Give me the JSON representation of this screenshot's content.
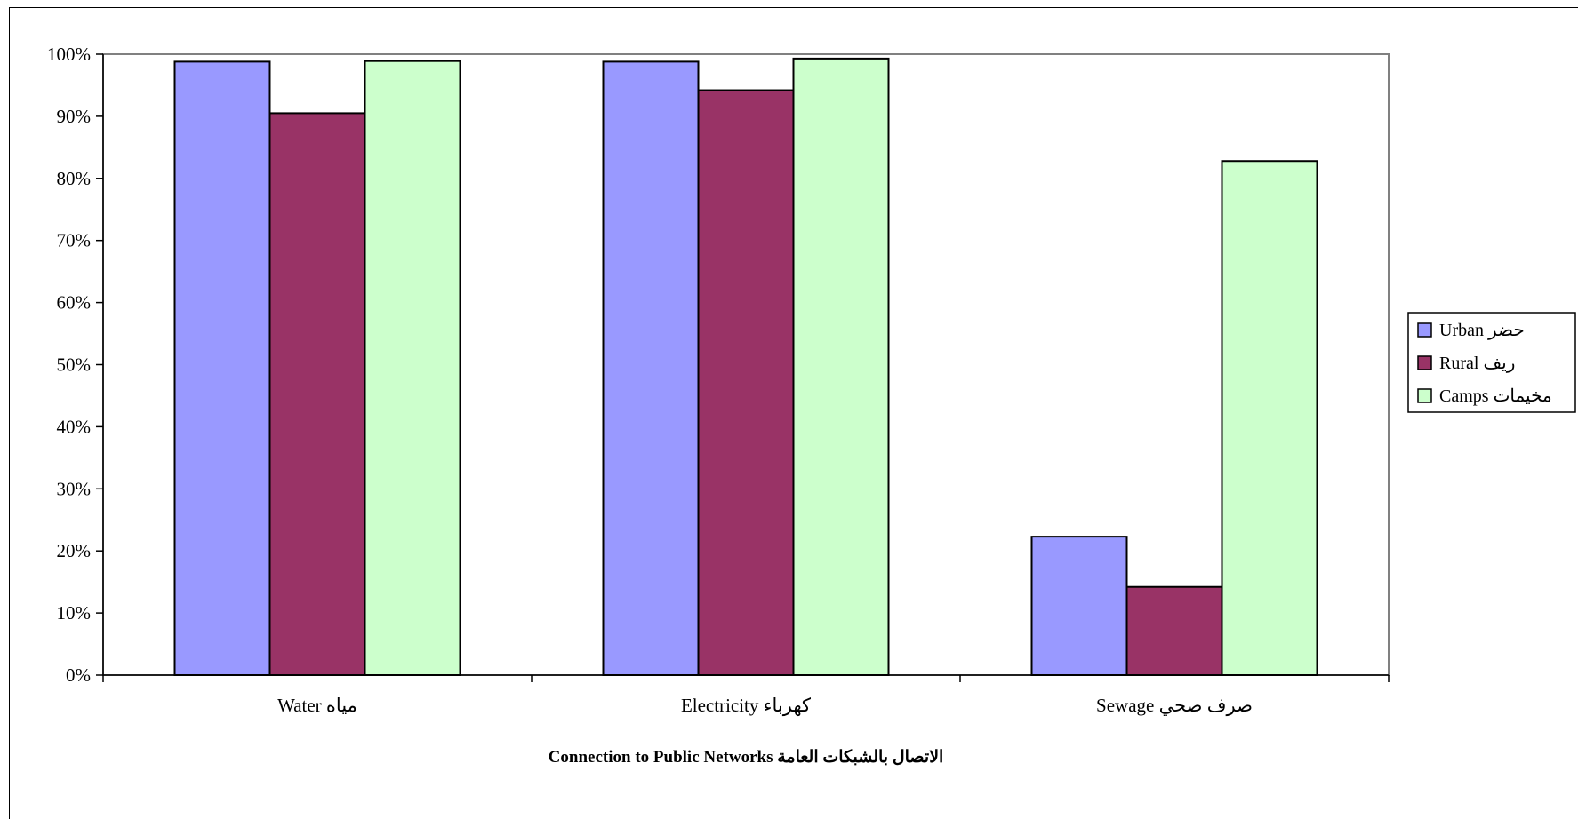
{
  "chart_data": {
    "type": "bar",
    "title": "Connection to Public Networks  الاتصال بالشبكات العامة",
    "xlabel": "",
    "ylabel": "",
    "ylim": [
      0,
      100
    ],
    "y_ticks": [
      "0%",
      "10%",
      "20%",
      "30%",
      "40%",
      "50%",
      "60%",
      "70%",
      "80%",
      "90%",
      "100%"
    ],
    "y_tick_values": [
      0,
      10,
      20,
      30,
      40,
      50,
      60,
      70,
      80,
      90,
      100
    ],
    "categories": [
      "Water  مياه",
      "Electricity  كهرباء",
      "Sewage  صرف صحي"
    ],
    "series": [
      {
        "name": "Urban  حضر",
        "color": "#9999FF",
        "values": [
          98.8,
          98.8,
          22.3
        ]
      },
      {
        "name": "Rural  ريف",
        "color": "#993366",
        "values": [
          90.5,
          94.2,
          14.2
        ]
      },
      {
        "name": "Camps  مخيمات",
        "color": "#CCFFCC",
        "values": [
          98.9,
          99.3,
          82.8
        ]
      }
    ],
    "grid": false,
    "legend_position": "right",
    "plot_background": "#FFFFFF",
    "plot_border_color": "#808080"
  }
}
